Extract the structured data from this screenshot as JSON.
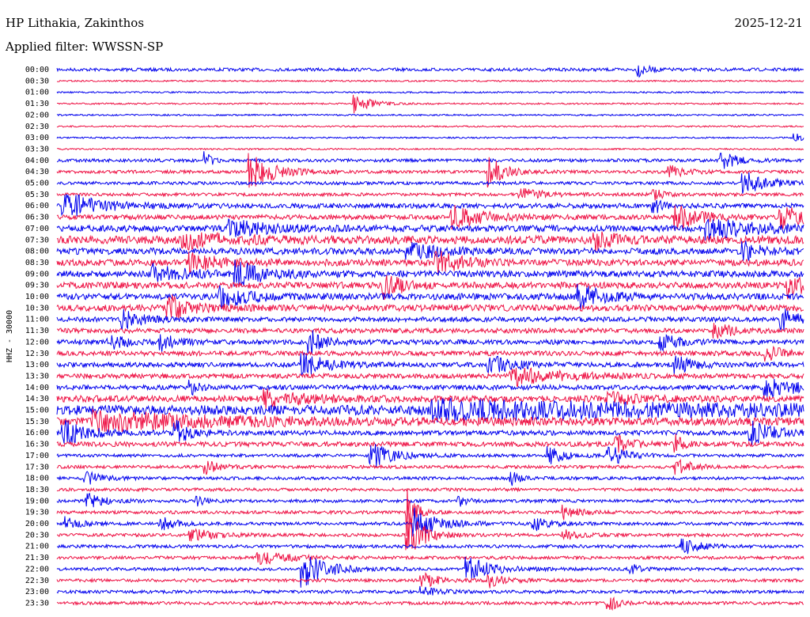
{
  "header": {
    "station": "HP Lithakia, Zakinthos",
    "date": "2025-12-21",
    "filter_label": "Applied filter: WWSSN-SP"
  },
  "chart_data": {
    "type": "line",
    "title": "HP Lithakia, Zakinthos",
    "ylabel": "HHZ - 30000",
    "row_labels": [
      "00:00",
      "00:30",
      "01:00",
      "01:30",
      "02:00",
      "02:30",
      "03:00",
      "03:30",
      "04:00",
      "04:30",
      "05:00",
      "05:30",
      "06:00",
      "06:30",
      "07:00",
      "07:30",
      "08:00",
      "08:30",
      "09:00",
      "09:30",
      "10:00",
      "10:30",
      "11:00",
      "11:30",
      "12:00",
      "12:30",
      "13:00",
      "13:30",
      "14:00",
      "14:30",
      "15:00",
      "15:30",
      "16:00",
      "16:30",
      "17:00",
      "17:30",
      "18:00",
      "18:30",
      "19:00",
      "19:30",
      "20:00",
      "20:30",
      "21:00",
      "21:30",
      "22:00",
      "22:30",
      "23:00",
      "23:30"
    ],
    "colors": [
      "#0000ee",
      "#ee1144"
    ],
    "noise": [
      2,
      1,
      1,
      1,
      1,
      1,
      1,
      1,
      2,
      2,
      2,
      2,
      3,
      3,
      4,
      5,
      4,
      4,
      4,
      4,
      4,
      4,
      3,
      3,
      3,
      3,
      3,
      3,
      3,
      4,
      6,
      5,
      3,
      3,
      2,
      2,
      2,
      2,
      2,
      2,
      2,
      2,
      2,
      2,
      2,
      2,
      2,
      2
    ],
    "events": [
      {
        "row": 0,
        "x": 0.78,
        "amp": 8,
        "dur": 0.012
      },
      {
        "row": 3,
        "x": 0.4,
        "amp": 12,
        "dur": 0.02
      },
      {
        "row": 6,
        "x": 0.99,
        "amp": 5,
        "dur": 0.01
      },
      {
        "row": 8,
        "x": 0.2,
        "amp": 10,
        "dur": 0.01
      },
      {
        "row": 8,
        "x": 0.89,
        "amp": 12,
        "dur": 0.02
      },
      {
        "row": 9,
        "x": 0.26,
        "amp": 22,
        "dur": 0.03
      },
      {
        "row": 9,
        "x": 0.58,
        "amp": 18,
        "dur": 0.02
      },
      {
        "row": 9,
        "x": 0.82,
        "amp": 8,
        "dur": 0.02
      },
      {
        "row": 10,
        "x": 0.92,
        "amp": 15,
        "dur": 0.03
      },
      {
        "row": 11,
        "x": 0.62,
        "amp": 8,
        "dur": 0.03
      },
      {
        "row": 11,
        "x": 0.8,
        "amp": 8,
        "dur": 0.01
      },
      {
        "row": 12,
        "x": 0.01,
        "amp": 18,
        "dur": 0.04
      },
      {
        "row": 12,
        "x": 0.8,
        "amp": 10,
        "dur": 0.01
      },
      {
        "row": 13,
        "x": 0.53,
        "amp": 14,
        "dur": 0.04
      },
      {
        "row": 13,
        "x": 0.83,
        "amp": 16,
        "dur": 0.03
      },
      {
        "row": 13,
        "x": 0.97,
        "amp": 14,
        "dur": 0.04
      },
      {
        "row": 14,
        "x": 0.23,
        "amp": 10,
        "dur": 0.05
      },
      {
        "row": 14,
        "x": 0.87,
        "amp": 12,
        "dur": 0.06
      },
      {
        "row": 15,
        "x": 0.17,
        "amp": 10,
        "dur": 0.05
      },
      {
        "row": 15,
        "x": 0.72,
        "amp": 14,
        "dur": 0.02
      },
      {
        "row": 16,
        "x": 0.47,
        "amp": 10,
        "dur": 0.04
      },
      {
        "row": 16,
        "x": 0.92,
        "amp": 12,
        "dur": 0.02
      },
      {
        "row": 17,
        "x": 0.51,
        "amp": 14,
        "dur": 0.03
      },
      {
        "row": 17,
        "x": 0.18,
        "amp": 10,
        "dur": 0.04
      },
      {
        "row": 18,
        "x": 0.13,
        "amp": 10,
        "dur": 0.04
      },
      {
        "row": 18,
        "x": 0.24,
        "amp": 14,
        "dur": 0.04
      },
      {
        "row": 19,
        "x": 0.44,
        "amp": 18,
        "dur": 0.02
      },
      {
        "row": 19,
        "x": 0.98,
        "amp": 16,
        "dur": 0.02
      },
      {
        "row": 20,
        "x": 0.7,
        "amp": 14,
        "dur": 0.03
      },
      {
        "row": 20,
        "x": 0.22,
        "amp": 12,
        "dur": 0.04
      },
      {
        "row": 21,
        "x": 0.15,
        "amp": 16,
        "dur": 0.03
      },
      {
        "row": 22,
        "x": 0.09,
        "amp": 10,
        "dur": 0.03
      },
      {
        "row": 22,
        "x": 0.97,
        "amp": 14,
        "dur": 0.02
      },
      {
        "row": 23,
        "x": 0.88,
        "amp": 12,
        "dur": 0.02
      },
      {
        "row": 24,
        "x": 0.07,
        "amp": 10,
        "dur": 0.02
      },
      {
        "row": 24,
        "x": 0.14,
        "amp": 10,
        "dur": 0.02
      },
      {
        "row": 24,
        "x": 0.34,
        "amp": 14,
        "dur": 0.02
      },
      {
        "row": 24,
        "x": 0.81,
        "amp": 12,
        "dur": 0.02
      },
      {
        "row": 25,
        "x": 0.95,
        "amp": 10,
        "dur": 0.02
      },
      {
        "row": 26,
        "x": 0.33,
        "amp": 14,
        "dur": 0.03
      },
      {
        "row": 26,
        "x": 0.58,
        "amp": 12,
        "dur": 0.03
      },
      {
        "row": 26,
        "x": 0.83,
        "amp": 12,
        "dur": 0.02
      },
      {
        "row": 27,
        "x": 0.61,
        "amp": 12,
        "dur": 0.06
      },
      {
        "row": 28,
        "x": 0.18,
        "amp": 8,
        "dur": 0.01
      },
      {
        "row": 28,
        "x": 0.95,
        "amp": 14,
        "dur": 0.04
      },
      {
        "row": 29,
        "x": 0.28,
        "amp": 10,
        "dur": 0.05
      },
      {
        "row": 29,
        "x": 0.74,
        "amp": 8,
        "dur": 0.03
      },
      {
        "row": 30,
        "x": 0.5,
        "amp": 10,
        "dur": 0.4
      },
      {
        "row": 31,
        "x": 0.05,
        "amp": 12,
        "dur": 0.14
      },
      {
        "row": 32,
        "x": 0.01,
        "amp": 16,
        "dur": 0.03
      },
      {
        "row": 32,
        "x": 0.16,
        "amp": 14,
        "dur": 0.02
      },
      {
        "row": 32,
        "x": 0.93,
        "amp": 14,
        "dur": 0.03
      },
      {
        "row": 33,
        "x": 0.75,
        "amp": 10,
        "dur": 0.02
      },
      {
        "row": 33,
        "x": 0.83,
        "amp": 10,
        "dur": 0.01
      },
      {
        "row": 34,
        "x": 0.42,
        "amp": 16,
        "dur": 0.03
      },
      {
        "row": 34,
        "x": 0.66,
        "amp": 10,
        "dur": 0.02
      },
      {
        "row": 34,
        "x": 0.74,
        "amp": 14,
        "dur": 0.02
      },
      {
        "row": 35,
        "x": 0.2,
        "amp": 8,
        "dur": 0.02
      },
      {
        "row": 35,
        "x": 0.83,
        "amp": 10,
        "dur": 0.02
      },
      {
        "row": 36,
        "x": 0.04,
        "amp": 8,
        "dur": 0.02
      },
      {
        "row": 36,
        "x": 0.61,
        "amp": 8,
        "dur": 0.01
      },
      {
        "row": 38,
        "x": 0.04,
        "amp": 10,
        "dur": 0.02
      },
      {
        "row": 38,
        "x": 0.19,
        "amp": 6,
        "dur": 0.01
      },
      {
        "row": 38,
        "x": 0.54,
        "amp": 6,
        "dur": 0.01
      },
      {
        "row": 39,
        "x": 0.47,
        "amp": 30,
        "dur": 0.01
      },
      {
        "row": 39,
        "x": 0.68,
        "amp": 8,
        "dur": 0.02
      },
      {
        "row": 40,
        "x": 0.01,
        "amp": 8,
        "dur": 0.02
      },
      {
        "row": 40,
        "x": 0.14,
        "amp": 8,
        "dur": 0.02
      },
      {
        "row": 40,
        "x": 0.48,
        "amp": 18,
        "dur": 0.03
      },
      {
        "row": 40,
        "x": 0.64,
        "amp": 8,
        "dur": 0.02
      },
      {
        "row": 41,
        "x": 0.18,
        "amp": 8,
        "dur": 0.03
      },
      {
        "row": 41,
        "x": 0.47,
        "amp": 30,
        "dur": 0.02
      },
      {
        "row": 41,
        "x": 0.68,
        "amp": 6,
        "dur": 0.02
      },
      {
        "row": 42,
        "x": 0.84,
        "amp": 10,
        "dur": 0.02
      },
      {
        "row": 43,
        "x": 0.27,
        "amp": 8,
        "dur": 0.04
      },
      {
        "row": 44,
        "x": 0.33,
        "amp": 22,
        "dur": 0.03
      },
      {
        "row": 44,
        "x": 0.55,
        "amp": 16,
        "dur": 0.03
      },
      {
        "row": 44,
        "x": 0.77,
        "amp": 6,
        "dur": 0.01
      },
      {
        "row": 45,
        "x": 0.49,
        "amp": 10,
        "dur": 0.02
      },
      {
        "row": 45,
        "x": 0.58,
        "amp": 8,
        "dur": 0.02
      },
      {
        "row": 46,
        "x": 0.49,
        "amp": 6,
        "dur": 0.02
      },
      {
        "row": 47,
        "x": 0.74,
        "amp": 10,
        "dur": 0.01
      }
    ]
  }
}
